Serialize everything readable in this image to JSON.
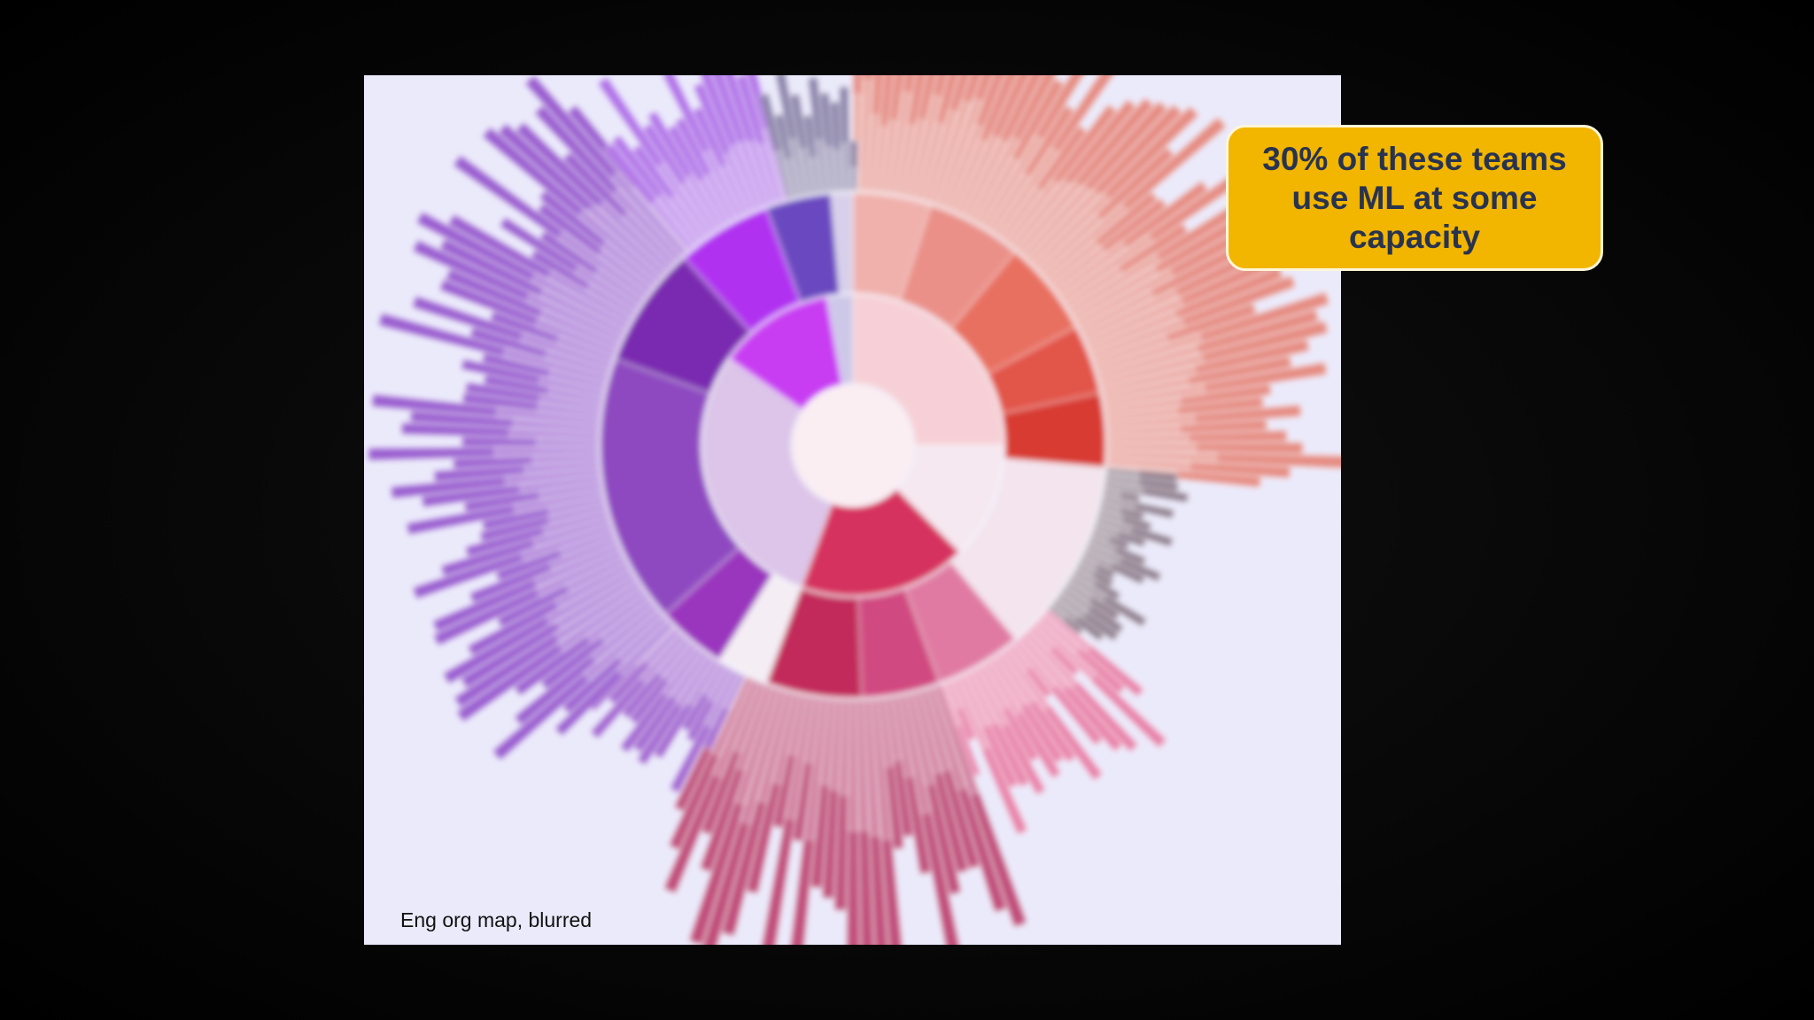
{
  "image": {
    "caption": "Eng org map, blurred"
  },
  "callout": {
    "text": "30% of these teams use ML at some capacity"
  }
}
